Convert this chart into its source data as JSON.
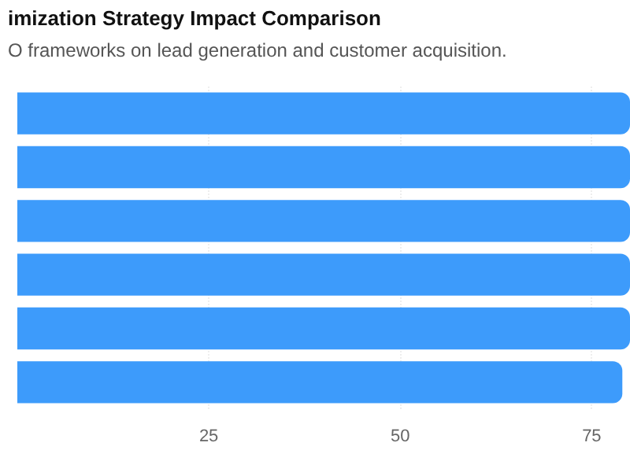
{
  "chart_data": {
    "type": "bar",
    "orientation": "horizontal",
    "title": "imization Strategy Impact Comparison",
    "subtitle": "O frameworks on lead generation and customer acquisition.",
    "categories": [
      null,
      null,
      null,
      null,
      null,
      null
    ],
    "values": [
      80,
      80,
      80,
      80,
      80,
      79
    ],
    "color": "#3d9bfb",
    "xlim": [
      0,
      80
    ],
    "xticks": [
      25,
      50,
      75
    ],
    "grid": "x"
  }
}
